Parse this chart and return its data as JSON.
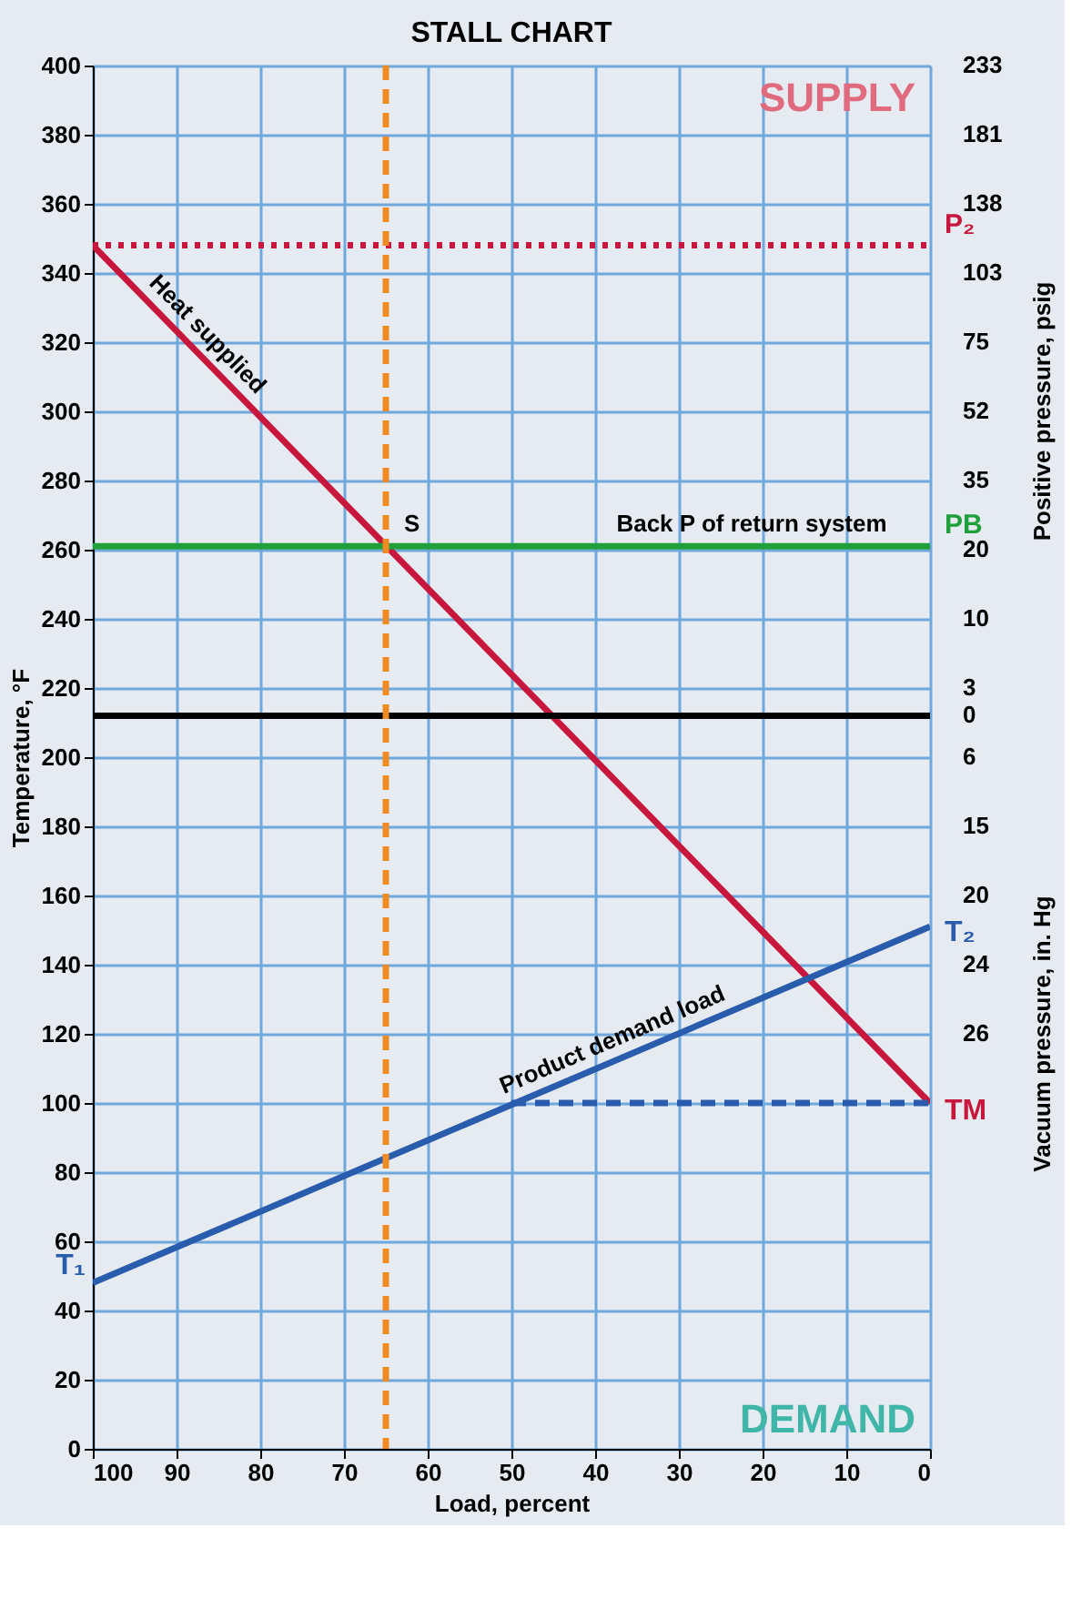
{
  "chart_data": {
    "type": "line",
    "title": "STALL CHART",
    "xlabel": "Load, percent",
    "ylabel": "Temperature, °F",
    "y2label": "Positive pressure, psig",
    "series": [
      {
        "name": "Heat supplied",
        "color": "#c8173c",
        "x": [
          100,
          0
        ],
        "values": [
          348,
          100
        ]
      },
      {
        "name": "Product demand load",
        "color": "#2a5cad",
        "x": [
          100,
          0
        ],
        "values": [
          48,
          151
        ]
      },
      {
        "color": "#2a5cad",
        "x": [
          50,
          0
        ],
        "values": [
          100,
          100
        ],
        "line_style": "dashed"
      }
    ],
    "xlim": [
      100,
      0
    ],
    "xticks": [
      100,
      90,
      80,
      70,
      60,
      50,
      40,
      30,
      20,
      10,
      0
    ],
    "ylim": [
      0,
      400
    ],
    "yticks": [
      0,
      20,
      40,
      60,
      80,
      100,
      120,
      140,
      160,
      180,
      200,
      220,
      240,
      260,
      280,
      300,
      320,
      340,
      360,
      380,
      400
    ],
    "ref_lines": [
      {
        "axis": "y",
        "value": 348,
        "label": "P₂",
        "color": "#c8173c",
        "line_style": "dotted"
      },
      {
        "axis": "y",
        "value": 261,
        "label": "PB",
        "color": "#1fa03a"
      },
      {
        "axis": "y",
        "value": 212,
        "color": "#000000"
      },
      {
        "axis": "x",
        "value": 65,
        "color": "#f08a24",
        "line_style": "dashed"
      }
    ],
    "annotations": [
      "SUPPLY",
      "DEMAND",
      "Vacuum pressure, in. Hg",
      {
        "text": "S",
        "x": 65,
        "y": 261
      },
      {
        "text": "Back P of return system",
        "x": 30,
        "y": 261
      },
      {
        "text": "T₁",
        "x": 100,
        "y": 48
      },
      {
        "text": "T₂",
        "x": 0,
        "y": 151
      },
      {
        "text": "TM",
        "x": 0,
        "y": 100
      },
      "233",
      "181",
      "138",
      "103",
      "75",
      "52",
      "35",
      "20",
      "10",
      "3",
      "0",
      "6",
      "15",
      "20",
      "24",
      "26"
    ],
    "grid": true
  }
}
